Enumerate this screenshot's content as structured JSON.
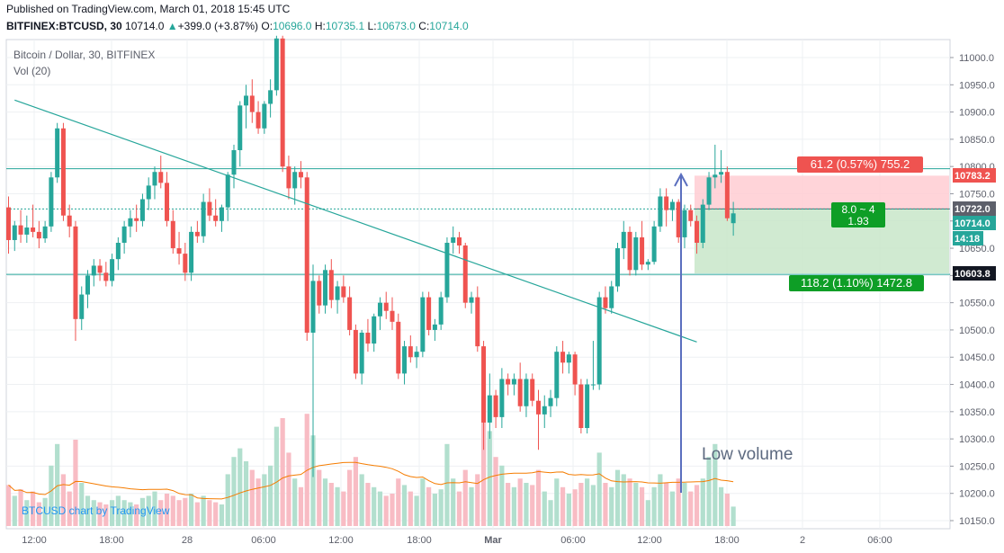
{
  "header": {
    "published": "Published on TradingView.com, March 01, 2018 15:45 UTC",
    "symbol": "BITFINEX:BTCUSD, 30",
    "last": "10714.0",
    "change_arrow": "▲",
    "change": "+399.0 (+3.87%)",
    "o_label": "O:",
    "o_value": "10696.0",
    "h_label": "H:",
    "h_value": "10735.1",
    "l_label": "L:",
    "l_value": "10673.0",
    "c_label": "C:",
    "c_value": "10714.0"
  },
  "legend": {
    "title": "Bitcoin / Dollar, 30, BITFINEX",
    "volume": "Vol (20)"
  },
  "watermark": "BTCUSD chart by TradingView",
  "annotation": "Low volume",
  "colors": {
    "up": "#26a69a",
    "down": "#ef5350",
    "up_volume": "#b2dfce",
    "down_volume": "#f8bcc4",
    "trendline": "#26a69a",
    "vol_ma": "#f57c00",
    "arrow": "#5b6fbf",
    "grid": "#eef0f3"
  },
  "chart_data": {
    "type": "candlestick",
    "title": "Bitcoin / Dollar, 30, BITFINEX",
    "ylim": [
      10130,
      11040
    ],
    "y_ticks": [
      10150,
      10200,
      10250,
      10300,
      10350,
      10400,
      10450,
      10500,
      10550,
      10600,
      10650,
      10700,
      10750,
      10800,
      10850,
      10900,
      10950,
      11000
    ],
    "x_labels": [
      "12:00",
      "18:00",
      "28",
      "06:00",
      "12:00",
      "18:00",
      "Mar",
      "06:00",
      "12:00",
      "18:00",
      "2",
      "06:00"
    ],
    "price_labels": [
      {
        "text": "10783.2",
        "value": 10783.2,
        "color": "#ef5350"
      },
      {
        "text": "10722.0",
        "value": 10722.0,
        "color": "#5d606b"
      },
      {
        "text": "10714.0",
        "value": 10714.0,
        "color": "#26a69a"
      },
      {
        "text": "14:18",
        "value": 10686.0,
        "color": "#26a69a"
      },
      {
        "text": "10603.8",
        "value": 10603.8,
        "color": "#131722"
      }
    ],
    "horizontal_levels": [
      10796,
      10602
    ],
    "trendline": {
      "from": {
        "bar": 1,
        "price": 10922
      },
      "to": {
        "bar": 113,
        "price": 10478
      }
    },
    "position": {
      "entry": 10722.0,
      "stop": 10783.2,
      "target": 10603.8,
      "stop_label": "61.2 (0.57%) 755.2",
      "target_label": "118.2 (1.10%) 1472.8",
      "center_label_1": "8.0 ~ 4",
      "center_label_2": "1.93"
    },
    "candles": [
      {
        "o": 10725,
        "h": 10745,
        "l": 10640,
        "c": 10665,
        "v": 95
      },
      {
        "o": 10665,
        "h": 10700,
        "l": 10645,
        "c": 10692,
        "v": 70
      },
      {
        "o": 10692,
        "h": 10720,
        "l": 10660,
        "c": 10675,
        "v": 85
      },
      {
        "o": 10675,
        "h": 10710,
        "l": 10660,
        "c": 10688,
        "v": 60
      },
      {
        "o": 10688,
        "h": 10730,
        "l": 10670,
        "c": 10680,
        "v": 80
      },
      {
        "o": 10680,
        "h": 10700,
        "l": 10650,
        "c": 10668,
        "v": 55
      },
      {
        "o": 10668,
        "h": 10700,
        "l": 10660,
        "c": 10690,
        "v": 65
      },
      {
        "o": 10690,
        "h": 10790,
        "l": 10680,
        "c": 10780,
        "v": 140
      },
      {
        "o": 10780,
        "h": 10880,
        "l": 10770,
        "c": 10870,
        "v": 190
      },
      {
        "o": 10870,
        "h": 10880,
        "l": 10700,
        "c": 10710,
        "v": 120
      },
      {
        "o": 10710,
        "h": 10730,
        "l": 10670,
        "c": 10690,
        "v": 80
      },
      {
        "o": 10690,
        "h": 10700,
        "l": 10480,
        "c": 10520,
        "v": 200
      },
      {
        "o": 10520,
        "h": 10580,
        "l": 10500,
        "c": 10565,
        "v": 100
      },
      {
        "o": 10565,
        "h": 10610,
        "l": 10540,
        "c": 10600,
        "v": 70
      },
      {
        "o": 10600,
        "h": 10630,
        "l": 10580,
        "c": 10618,
        "v": 60
      },
      {
        "o": 10618,
        "h": 10630,
        "l": 10590,
        "c": 10605,
        "v": 55
      },
      {
        "o": 10605,
        "h": 10625,
        "l": 10580,
        "c": 10590,
        "v": 50
      },
      {
        "o": 10590,
        "h": 10640,
        "l": 10580,
        "c": 10630,
        "v": 60
      },
      {
        "o": 10630,
        "h": 10670,
        "l": 10610,
        "c": 10660,
        "v": 70
      },
      {
        "o": 10660,
        "h": 10700,
        "l": 10640,
        "c": 10690,
        "v": 60
      },
      {
        "o": 10690,
        "h": 10720,
        "l": 10670,
        "c": 10705,
        "v": 55
      },
      {
        "o": 10705,
        "h": 10730,
        "l": 10680,
        "c": 10700,
        "v": 50
      },
      {
        "o": 10700,
        "h": 10750,
        "l": 10690,
        "c": 10740,
        "v": 65
      },
      {
        "o": 10740,
        "h": 10780,
        "l": 10720,
        "c": 10765,
        "v": 70
      },
      {
        "o": 10765,
        "h": 10800,
        "l": 10740,
        "c": 10790,
        "v": 80
      },
      {
        "o": 10790,
        "h": 10820,
        "l": 10760,
        "c": 10770,
        "v": 60
      },
      {
        "o": 10770,
        "h": 10790,
        "l": 10690,
        "c": 10700,
        "v": 75
      },
      {
        "o": 10700,
        "h": 10720,
        "l": 10640,
        "c": 10650,
        "v": 70
      },
      {
        "o": 10650,
        "h": 10680,
        "l": 10620,
        "c": 10640,
        "v": 60
      },
      {
        "o": 10640,
        "h": 10660,
        "l": 10590,
        "c": 10605,
        "v": 65
      },
      {
        "o": 10605,
        "h": 10690,
        "l": 10590,
        "c": 10680,
        "v": 75
      },
      {
        "o": 10680,
        "h": 10700,
        "l": 10660,
        "c": 10672,
        "v": 55
      },
      {
        "o": 10672,
        "h": 10750,
        "l": 10660,
        "c": 10735,
        "v": 70
      },
      {
        "o": 10735,
        "h": 10760,
        "l": 10700,
        "c": 10710,
        "v": 60
      },
      {
        "o": 10710,
        "h": 10740,
        "l": 10690,
        "c": 10700,
        "v": 55
      },
      {
        "o": 10700,
        "h": 10730,
        "l": 10680,
        "c": 10725,
        "v": 50
      },
      {
        "o": 10725,
        "h": 10790,
        "l": 10700,
        "c": 10785,
        "v": 120
      },
      {
        "o": 10785,
        "h": 10840,
        "l": 10760,
        "c": 10830,
        "v": 160
      },
      {
        "o": 10830,
        "h": 10920,
        "l": 10800,
        "c": 10912,
        "v": 180
      },
      {
        "o": 10912,
        "h": 10950,
        "l": 10870,
        "c": 10930,
        "v": 150
      },
      {
        "o": 10930,
        "h": 10960,
        "l": 10880,
        "c": 10900,
        "v": 130
      },
      {
        "o": 10900,
        "h": 10920,
        "l": 10860,
        "c": 10870,
        "v": 110
      },
      {
        "o": 10870,
        "h": 10920,
        "l": 10860,
        "c": 10915,
        "v": 120
      },
      {
        "o": 10915,
        "h": 10960,
        "l": 10890,
        "c": 10940,
        "v": 140
      },
      {
        "o": 10940,
        "h": 11040,
        "l": 10930,
        "c": 11035,
        "v": 230
      },
      {
        "o": 11035,
        "h": 11040,
        "l": 10790,
        "c": 10800,
        "v": 250
      },
      {
        "o": 10800,
        "h": 10820,
        "l": 10740,
        "c": 10760,
        "v": 170
      },
      {
        "o": 10760,
        "h": 10800,
        "l": 10730,
        "c": 10790,
        "v": 110
      },
      {
        "o": 10790,
        "h": 10810,
        "l": 10760,
        "c": 10780,
        "v": 90
      },
      {
        "o": 10780,
        "h": 10790,
        "l": 10480,
        "c": 10495,
        "v": 260
      },
      {
        "o": 10495,
        "h": 10620,
        "l": 10230,
        "c": 10590,
        "v": 210
      },
      {
        "o": 10590,
        "h": 10600,
        "l": 10530,
        "c": 10545,
        "v": 130
      },
      {
        "o": 10545,
        "h": 10620,
        "l": 10530,
        "c": 10610,
        "v": 110
      },
      {
        "o": 10610,
        "h": 10630,
        "l": 10540,
        "c": 10555,
        "v": 100
      },
      {
        "o": 10555,
        "h": 10590,
        "l": 10530,
        "c": 10580,
        "v": 90
      },
      {
        "o": 10580,
        "h": 10600,
        "l": 10550,
        "c": 10560,
        "v": 80
      },
      {
        "o": 10560,
        "h": 10580,
        "l": 10490,
        "c": 10500,
        "v": 130
      },
      {
        "o": 10500,
        "h": 10510,
        "l": 10410,
        "c": 10420,
        "v": 160
      },
      {
        "o": 10420,
        "h": 10500,
        "l": 10400,
        "c": 10495,
        "v": 120
      },
      {
        "o": 10495,
        "h": 10520,
        "l": 10460,
        "c": 10475,
        "v": 100
      },
      {
        "o": 10475,
        "h": 10530,
        "l": 10460,
        "c": 10525,
        "v": 90
      },
      {
        "o": 10525,
        "h": 10560,
        "l": 10500,
        "c": 10550,
        "v": 80
      },
      {
        "o": 10550,
        "h": 10570,
        "l": 10520,
        "c": 10535,
        "v": 70
      },
      {
        "o": 10535,
        "h": 10560,
        "l": 10500,
        "c": 10515,
        "v": 75
      },
      {
        "o": 10515,
        "h": 10530,
        "l": 10410,
        "c": 10420,
        "v": 110
      },
      {
        "o": 10420,
        "h": 10480,
        "l": 10400,
        "c": 10470,
        "v": 95
      },
      {
        "o": 10470,
        "h": 10490,
        "l": 10440,
        "c": 10450,
        "v": 80
      },
      {
        "o": 10450,
        "h": 10470,
        "l": 10430,
        "c": 10460,
        "v": 70
      },
      {
        "o": 10460,
        "h": 10570,
        "l": 10450,
        "c": 10560,
        "v": 110
      },
      {
        "o": 10560,
        "h": 10570,
        "l": 10490,
        "c": 10500,
        "v": 90
      },
      {
        "o": 10500,
        "h": 10520,
        "l": 10480,
        "c": 10510,
        "v": 75
      },
      {
        "o": 10510,
        "h": 10570,
        "l": 10500,
        "c": 10560,
        "v": 85
      },
      {
        "o": 10560,
        "h": 10670,
        "l": 10550,
        "c": 10660,
        "v": 190
      },
      {
        "o": 10660,
        "h": 10690,
        "l": 10640,
        "c": 10670,
        "v": 110
      },
      {
        "o": 10670,
        "h": 10680,
        "l": 10640,
        "c": 10655,
        "v": 80
      },
      {
        "o": 10655,
        "h": 10660,
        "l": 10540,
        "c": 10550,
        "v": 130
      },
      {
        "o": 10550,
        "h": 10570,
        "l": 10530,
        "c": 10560,
        "v": 90
      },
      {
        "o": 10560,
        "h": 10580,
        "l": 10460,
        "c": 10470,
        "v": 120
      },
      {
        "o": 10470,
        "h": 10480,
        "l": 10280,
        "c": 10330,
        "v": 300
      },
      {
        "o": 10330,
        "h": 10420,
        "l": 10300,
        "c": 10380,
        "v": 220
      },
      {
        "o": 10380,
        "h": 10390,
        "l": 10320,
        "c": 10340,
        "v": 160
      },
      {
        "o": 10340,
        "h": 10430,
        "l": 10320,
        "c": 10410,
        "v": 140
      },
      {
        "o": 10410,
        "h": 10420,
        "l": 10380,
        "c": 10400,
        "v": 100
      },
      {
        "o": 10400,
        "h": 10420,
        "l": 10380,
        "c": 10410,
        "v": 90
      },
      {
        "o": 10410,
        "h": 10440,
        "l": 10350,
        "c": 10360,
        "v": 110
      },
      {
        "o": 10360,
        "h": 10420,
        "l": 10340,
        "c": 10410,
        "v": 100
      },
      {
        "o": 10410,
        "h": 10420,
        "l": 10360,
        "c": 10370,
        "v": 95
      },
      {
        "o": 10370,
        "h": 10390,
        "l": 10280,
        "c": 10345,
        "v": 130
      },
      {
        "o": 10345,
        "h": 10380,
        "l": 10320,
        "c": 10360,
        "v": 80
      },
      {
        "o": 10360,
        "h": 10390,
        "l": 10340,
        "c": 10375,
        "v": 60
      },
      {
        "o": 10375,
        "h": 10470,
        "l": 10360,
        "c": 10460,
        "v": 110
      },
      {
        "o": 10460,
        "h": 10480,
        "l": 10420,
        "c": 10440,
        "v": 90
      },
      {
        "o": 10440,
        "h": 10460,
        "l": 10420,
        "c": 10455,
        "v": 75
      },
      {
        "o": 10455,
        "h": 10460,
        "l": 10380,
        "c": 10400,
        "v": 85
      },
      {
        "o": 10400,
        "h": 10410,
        "l": 10310,
        "c": 10320,
        "v": 100
      },
      {
        "o": 10320,
        "h": 10410,
        "l": 10310,
        "c": 10400,
        "v": 110
      },
      {
        "o": 10400,
        "h": 10480,
        "l": 10390,
        "c": 10400,
        "v": 95
      },
      {
        "o": 10400,
        "h": 10570,
        "l": 10390,
        "c": 10560,
        "v": 170
      },
      {
        "o": 10560,
        "h": 10580,
        "l": 10530,
        "c": 10540,
        "v": 100
      },
      {
        "o": 10540,
        "h": 10590,
        "l": 10530,
        "c": 10580,
        "v": 90
      },
      {
        "o": 10580,
        "h": 10660,
        "l": 10570,
        "c": 10650,
        "v": 130
      },
      {
        "o": 10650,
        "h": 10700,
        "l": 10630,
        "c": 10680,
        "v": 120
      },
      {
        "o": 10680,
        "h": 10690,
        "l": 10600,
        "c": 10610,
        "v": 110
      },
      {
        "o": 10610,
        "h": 10680,
        "l": 10600,
        "c": 10670,
        "v": 100
      },
      {
        "o": 10670,
        "h": 10700,
        "l": 10610,
        "c": 10620,
        "v": 90
      },
      {
        "o": 10620,
        "h": 10630,
        "l": 10610,
        "c": 10625,
        "v": 60
      },
      {
        "o": 10625,
        "h": 10700,
        "l": 10620,
        "c": 10690,
        "v": 90
      },
      {
        "o": 10690,
        "h": 10760,
        "l": 10680,
        "c": 10745,
        "v": 120
      },
      {
        "o": 10745,
        "h": 10760,
        "l": 10690,
        "c": 10720,
        "v": 100
      },
      {
        "o": 10720,
        "h": 10740,
        "l": 10700,
        "c": 10735,
        "v": 80
      },
      {
        "o": 10735,
        "h": 10740,
        "l": 10660,
        "c": 10670,
        "v": 110
      },
      {
        "o": 10670,
        "h": 10730,
        "l": 10650,
        "c": 10720,
        "v": 100
      },
      {
        "o": 10720,
        "h": 10730,
        "l": 10690,
        "c": 10700,
        "v": 80
      },
      {
        "o": 10700,
        "h": 10710,
        "l": 10640,
        "c": 10660,
        "v": 95
      },
      {
        "o": 10660,
        "h": 10740,
        "l": 10650,
        "c": 10730,
        "v": 110
      },
      {
        "o": 10730,
        "h": 10790,
        "l": 10720,
        "c": 10780,
        "v": 160
      },
      {
        "o": 10780,
        "h": 10840,
        "l": 10760,
        "c": 10785,
        "v": 190
      },
      {
        "o": 10785,
        "h": 10830,
        "l": 10770,
        "c": 10790,
        "v": 90
      },
      {
        "o": 10790,
        "h": 10800,
        "l": 10700,
        "c": 10705,
        "v": 75
      },
      {
        "o": 10696,
        "h": 10735.1,
        "l": 10673,
        "c": 10714,
        "v": 45
      }
    ]
  }
}
